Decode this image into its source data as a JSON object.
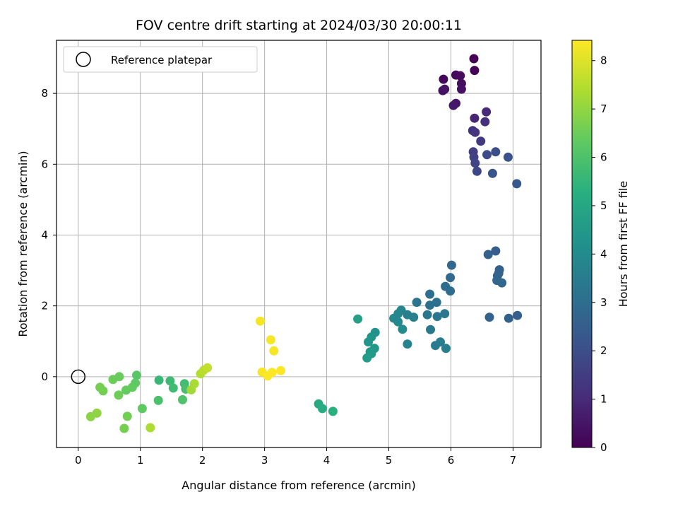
{
  "chart_data": {
    "type": "scatter",
    "title": "FOV centre drift starting at 2024/03/30 20:00:11",
    "xlabel": "Angular distance from reference (arcmin)",
    "ylabel": "Rotation from reference (arcmin)",
    "xlim": [
      -0.35,
      7.45
    ],
    "ylim": [
      -2.0,
      9.5
    ],
    "xticks": [
      0,
      1,
      2,
      3,
      4,
      5,
      6,
      7
    ],
    "yticks": [
      0,
      2,
      4,
      6,
      8
    ],
    "grid": true,
    "legend": {
      "position": "top-left",
      "entries": [
        {
          "label": "Reference platepar",
          "marker": "open-circle",
          "color": "#000000"
        }
      ]
    },
    "reference_point": {
      "x": 0,
      "y": 0
    },
    "colorbar": {
      "label": "Hours from first FF file",
      "range": [
        0,
        8.42
      ],
      "ticks": [
        0,
        1,
        2,
        3,
        4,
        5,
        6,
        7,
        8
      ],
      "colormap": "viridis"
    },
    "points": [
      {
        "x": 6.37,
        "y": 8.98,
        "c": 0.05
      },
      {
        "x": 6.38,
        "y": 8.65,
        "c": 0.1
      },
      {
        "x": 5.88,
        "y": 8.4,
        "c": 0.15
      },
      {
        "x": 6.08,
        "y": 8.52,
        "c": 0.2
      },
      {
        "x": 6.15,
        "y": 8.5,
        "c": 0.25
      },
      {
        "x": 6.17,
        "y": 8.28,
        "c": 0.3
      },
      {
        "x": 6.17,
        "y": 8.12,
        "c": 0.35
      },
      {
        "x": 5.87,
        "y": 8.08,
        "c": 0.4
      },
      {
        "x": 5.9,
        "y": 8.12,
        "c": 0.45
      },
      {
        "x": 6.08,
        "y": 7.72,
        "c": 0.5
      },
      {
        "x": 6.04,
        "y": 7.66,
        "c": 0.55
      },
      {
        "x": 6.38,
        "y": 7.3,
        "c": 0.9
      },
      {
        "x": 6.57,
        "y": 7.48,
        "c": 1.0
      },
      {
        "x": 6.55,
        "y": 7.2,
        "c": 1.1
      },
      {
        "x": 6.35,
        "y": 6.95,
        "c": 1.2
      },
      {
        "x": 6.39,
        "y": 6.9,
        "c": 1.3
      },
      {
        "x": 6.48,
        "y": 6.65,
        "c": 1.4
      },
      {
        "x": 6.36,
        "y": 6.35,
        "c": 1.5
      },
      {
        "x": 6.37,
        "y": 6.2,
        "c": 1.6
      },
      {
        "x": 6.39,
        "y": 6.03,
        "c": 1.7
      },
      {
        "x": 6.42,
        "y": 5.8,
        "c": 1.8
      },
      {
        "x": 6.58,
        "y": 6.27,
        "c": 1.9
      },
      {
        "x": 6.72,
        "y": 6.35,
        "c": 2.0
      },
      {
        "x": 6.92,
        "y": 6.2,
        "c": 2.1
      },
      {
        "x": 6.67,
        "y": 5.74,
        "c": 2.2
      },
      {
        "x": 7.06,
        "y": 5.45,
        "c": 2.3
      },
      {
        "x": 6.72,
        "y": 3.55,
        "c": 2.5
      },
      {
        "x": 6.6,
        "y": 3.45,
        "c": 2.55
      },
      {
        "x": 6.78,
        "y": 3.02,
        "c": 2.6
      },
      {
        "x": 6.77,
        "y": 2.92,
        "c": 2.65
      },
      {
        "x": 6.75,
        "y": 2.85,
        "c": 2.7
      },
      {
        "x": 6.74,
        "y": 2.72,
        "c": 2.75
      },
      {
        "x": 6.82,
        "y": 2.65,
        "c": 2.8
      },
      {
        "x": 6.01,
        "y": 3.15,
        "c": 2.85
      },
      {
        "x": 5.99,
        "y": 2.8,
        "c": 2.9
      },
      {
        "x": 5.91,
        "y": 2.55,
        "c": 2.95
      },
      {
        "x": 5.99,
        "y": 2.42,
        "c": 3.0
      },
      {
        "x": 5.66,
        "y": 2.33,
        "c": 3.05
      },
      {
        "x": 5.66,
        "y": 2.02,
        "c": 3.1
      },
      {
        "x": 5.77,
        "y": 2.1,
        "c": 3.15
      },
      {
        "x": 5.45,
        "y": 2.1,
        "c": 3.2
      },
      {
        "x": 5.62,
        "y": 1.75,
        "c": 3.25
      },
      {
        "x": 5.78,
        "y": 1.7,
        "c": 3.3
      },
      {
        "x": 5.9,
        "y": 1.78,
        "c": 3.35
      },
      {
        "x": 6.62,
        "y": 1.68,
        "c": 2.7
      },
      {
        "x": 6.93,
        "y": 1.65,
        "c": 2.6
      },
      {
        "x": 7.07,
        "y": 1.73,
        "c": 2.55
      },
      {
        "x": 5.67,
        "y": 1.33,
        "c": 3.4
      },
      {
        "x": 5.75,
        "y": 0.88,
        "c": 3.45
      },
      {
        "x": 5.83,
        "y": 0.98,
        "c": 3.5
      },
      {
        "x": 5.92,
        "y": 0.8,
        "c": 3.55
      },
      {
        "x": 5.3,
        "y": 1.75,
        "c": 3.6
      },
      {
        "x": 5.4,
        "y": 1.68,
        "c": 3.65
      },
      {
        "x": 5.3,
        "y": 0.92,
        "c": 3.7
      },
      {
        "x": 5.2,
        "y": 1.88,
        "c": 3.8
      },
      {
        "x": 5.15,
        "y": 1.78,
        "c": 3.85
      },
      {
        "x": 5.08,
        "y": 1.65,
        "c": 3.9
      },
      {
        "x": 5.15,
        "y": 1.55,
        "c": 3.95
      },
      {
        "x": 5.22,
        "y": 1.34,
        "c": 4.0
      },
      {
        "x": 4.78,
        "y": 1.25,
        "c": 4.3
      },
      {
        "x": 4.72,
        "y": 1.12,
        "c": 4.35
      },
      {
        "x": 4.67,
        "y": 0.98,
        "c": 4.4
      },
      {
        "x": 4.77,
        "y": 0.8,
        "c": 4.45
      },
      {
        "x": 4.7,
        "y": 0.7,
        "c": 4.5
      },
      {
        "x": 4.72,
        "y": 0.65,
        "c": 4.55
      },
      {
        "x": 4.65,
        "y": 0.53,
        "c": 4.6
      },
      {
        "x": 4.5,
        "y": 1.63,
        "c": 4.75
      },
      {
        "x": 3.87,
        "y": -0.77,
        "c": 5.1
      },
      {
        "x": 3.93,
        "y": -0.9,
        "c": 5.2
      },
      {
        "x": 4.1,
        "y": -0.98,
        "c": 5.3
      },
      {
        "x": 1.3,
        "y": -0.1,
        "c": 5.6
      },
      {
        "x": 1.48,
        "y": -0.12,
        "c": 5.7
      },
      {
        "x": 1.53,
        "y": -0.32,
        "c": 5.75
      },
      {
        "x": 1.71,
        "y": -0.2,
        "c": 5.8
      },
      {
        "x": 1.73,
        "y": -0.35,
        "c": 5.9
      },
      {
        "x": 1.29,
        "y": -0.67,
        "c": 5.95
      },
      {
        "x": 1.68,
        "y": -0.65,
        "c": 6.05
      },
      {
        "x": 0.94,
        "y": 0.04,
        "c": 6.2
      },
      {
        "x": 0.92,
        "y": -0.18,
        "c": 6.3
      },
      {
        "x": 0.87,
        "y": -0.3,
        "c": 6.35
      },
      {
        "x": 0.77,
        "y": -0.38,
        "c": 6.4
      },
      {
        "x": 0.66,
        "y": 0.0,
        "c": 6.45
      },
      {
        "x": 0.56,
        "y": -0.08,
        "c": 6.5
      },
      {
        "x": 0.65,
        "y": -0.52,
        "c": 6.55
      },
      {
        "x": 0.4,
        "y": -0.4,
        "c": 6.6
      },
      {
        "x": 0.35,
        "y": -0.3,
        "c": 6.65
      },
      {
        "x": 1.03,
        "y": -0.9,
        "c": 6.3
      },
      {
        "x": 0.79,
        "y": -1.12,
        "c": 6.6
      },
      {
        "x": 0.74,
        "y": -1.46,
        "c": 6.65
      },
      {
        "x": 0.2,
        "y": -1.13,
        "c": 6.9
      },
      {
        "x": 0.3,
        "y": -1.03,
        "c": 6.95
      },
      {
        "x": 1.82,
        "y": -0.37,
        "c": 7.2
      },
      {
        "x": 1.87,
        "y": -0.2,
        "c": 7.3
      },
      {
        "x": 1.16,
        "y": -1.44,
        "c": 7.35
      },
      {
        "x": 1.97,
        "y": 0.08,
        "c": 7.45
      },
      {
        "x": 2.02,
        "y": 0.18,
        "c": 7.55
      },
      {
        "x": 2.08,
        "y": 0.25,
        "c": 7.65
      },
      {
        "x": 2.93,
        "y": 1.57,
        "c": 8.3
      },
      {
        "x": 3.1,
        "y": 1.04,
        "c": 8.32
      },
      {
        "x": 3.15,
        "y": 0.73,
        "c": 8.34
      },
      {
        "x": 2.96,
        "y": 0.13,
        "c": 8.36
      },
      {
        "x": 3.05,
        "y": 0.02,
        "c": 8.38
      },
      {
        "x": 3.12,
        "y": 0.12,
        "c": 8.4
      },
      {
        "x": 3.26,
        "y": 0.17,
        "c": 8.42
      }
    ]
  }
}
